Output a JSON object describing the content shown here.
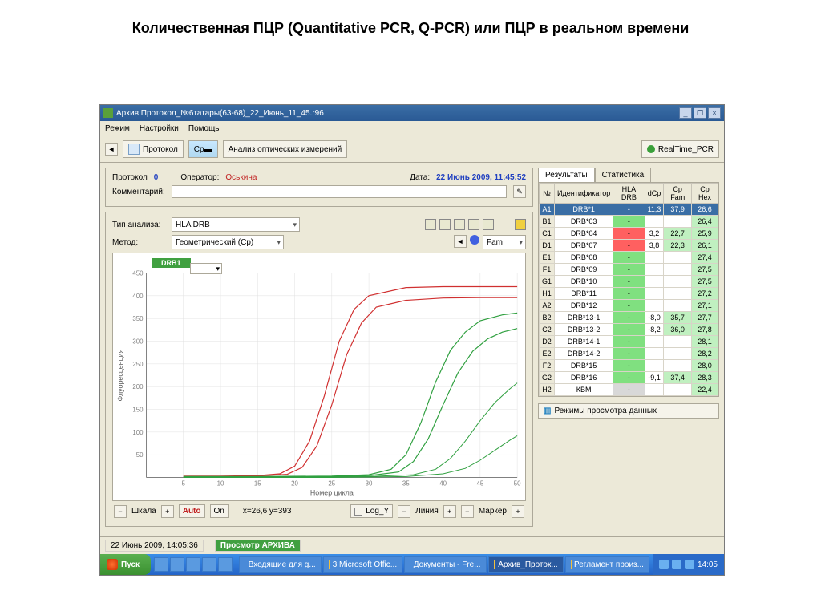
{
  "slide": {
    "title": "Количественная ПЦР (Quantitative PCR, Q-PCR) или ПЦР в реальном времени"
  },
  "window": {
    "title": "Архив Протокол_№6татары(63-68)_22_Июнь_11_45.r96",
    "menu": {
      "mode": "Режим",
      "settings": "Настройки",
      "help": "Помощь"
    },
    "toolbar": {
      "protocol_btn": "Протокол",
      "analysis_btn": "Анализ оптических измерений",
      "rt_btn": "RealTime_PCR"
    }
  },
  "info": {
    "protocol_lbl": "Протокол",
    "protocol_val": "0",
    "operator_lbl": "Оператор:",
    "operator_val": "Оськина",
    "date_lbl": "Дата:",
    "date_val": "22 Июнь 2009, 11:45:52",
    "comment_lbl": "Комментарий:",
    "type_lbl": "Тип анализа:",
    "type_val": "HLA DRB",
    "method_lbl": "Метод:",
    "method_val": "Геометрический (Cp)",
    "chan_lbl": "Fam"
  },
  "chart": {
    "legend": "DRB1",
    "xlabel": "Номер цикла",
    "ylabel": "Флуоресценция",
    "ylim": [
      0,
      450
    ],
    "yticks": [
      50,
      100,
      150,
      200,
      250,
      300,
      350,
      400,
      450
    ],
    "xlim": [
      0,
      50
    ],
    "xticks": [
      5,
      10,
      15,
      20,
      25,
      30,
      35,
      40,
      45,
      50
    ],
    "bg": "#ffffff",
    "grid": "#e0e0e0",
    "series": [
      {
        "color": "#d03030",
        "width": 1.2,
        "pts": [
          [
            5,
            3
          ],
          [
            10,
            3
          ],
          [
            15,
            4
          ],
          [
            18,
            8
          ],
          [
            20,
            25
          ],
          [
            22,
            80
          ],
          [
            24,
            180
          ],
          [
            26,
            300
          ],
          [
            28,
            370
          ],
          [
            30,
            400
          ],
          [
            35,
            418
          ],
          [
            40,
            420
          ],
          [
            45,
            420
          ],
          [
            50,
            420
          ]
        ]
      },
      {
        "color": "#d03030",
        "width": 1.2,
        "pts": [
          [
            5,
            2
          ],
          [
            10,
            2
          ],
          [
            15,
            3
          ],
          [
            19,
            7
          ],
          [
            21,
            22
          ],
          [
            23,
            70
          ],
          [
            25,
            160
          ],
          [
            27,
            270
          ],
          [
            29,
            340
          ],
          [
            31,
            375
          ],
          [
            35,
            390
          ],
          [
            40,
            395
          ],
          [
            45,
            396
          ],
          [
            50,
            396
          ]
        ]
      },
      {
        "color": "#30a040",
        "width": 1.2,
        "pts": [
          [
            5,
            2
          ],
          [
            15,
            2
          ],
          [
            25,
            3
          ],
          [
            30,
            6
          ],
          [
            33,
            18
          ],
          [
            35,
            50
          ],
          [
            37,
            120
          ],
          [
            39,
            210
          ],
          [
            41,
            280
          ],
          [
            43,
            320
          ],
          [
            45,
            345
          ],
          [
            48,
            358
          ],
          [
            50,
            362
          ]
        ]
      },
      {
        "color": "#30a040",
        "width": 1.2,
        "pts": [
          [
            5,
            1
          ],
          [
            15,
            1
          ],
          [
            25,
            2
          ],
          [
            30,
            4
          ],
          [
            34,
            12
          ],
          [
            36,
            35
          ],
          [
            38,
            85
          ],
          [
            40,
            160
          ],
          [
            42,
            230
          ],
          [
            44,
            278
          ],
          [
            46,
            305
          ],
          [
            48,
            320
          ],
          [
            50,
            328
          ]
        ]
      },
      {
        "color": "#30a040",
        "width": 1.0,
        "pts": [
          [
            5,
            1
          ],
          [
            20,
            1
          ],
          [
            30,
            2
          ],
          [
            36,
            6
          ],
          [
            39,
            18
          ],
          [
            41,
            42
          ],
          [
            43,
            80
          ],
          [
            45,
            125
          ],
          [
            47,
            165
          ],
          [
            49,
            195
          ],
          [
            50,
            208
          ]
        ]
      },
      {
        "color": "#30a040",
        "width": 1.0,
        "pts": [
          [
            5,
            0
          ],
          [
            25,
            0
          ],
          [
            35,
            2
          ],
          [
            40,
            8
          ],
          [
            43,
            20
          ],
          [
            45,
            38
          ],
          [
            47,
            60
          ],
          [
            49,
            82
          ],
          [
            50,
            92
          ]
        ]
      }
    ]
  },
  "controls": {
    "scale": "Шкала",
    "auto": "Auto",
    "on": "On",
    "cursor": "x=26,6 y=393",
    "logy": "Log_Y",
    "line": "Линия",
    "marker": "Маркер"
  },
  "results": {
    "tab1": "Результаты",
    "tab2": "Статистика",
    "headers": {
      "n": "№",
      "id": "Идентификатор",
      "hla": "HLA DRB",
      "dcp": "dCp",
      "cpfam": "Cp Fam",
      "cphex": "Cp Hex"
    },
    "rows": [
      {
        "w": "A1",
        "id": "DRB*1",
        "hla": "g",
        "dcp": "11,3",
        "cpfam": "37,9",
        "cphex": "26,6",
        "sel": true
      },
      {
        "w": "B1",
        "id": "DRB*03",
        "hla": "g",
        "dcp": "",
        "cpfam": "",
        "cphex": "26,4"
      },
      {
        "w": "C1",
        "id": "DRB*04",
        "hla": "r",
        "dcp": "3,2",
        "cpfam": "22,7",
        "cphex": "25,9"
      },
      {
        "w": "D1",
        "id": "DRB*07",
        "hla": "r",
        "dcp": "3,8",
        "cpfam": "22,3",
        "cphex": "26,1"
      },
      {
        "w": "E1",
        "id": "DRB*08",
        "hla": "g",
        "dcp": "",
        "cpfam": "",
        "cphex": "27,4"
      },
      {
        "w": "F1",
        "id": "DRB*09",
        "hla": "g",
        "dcp": "",
        "cpfam": "",
        "cphex": "27,5"
      },
      {
        "w": "G1",
        "id": "DRB*10",
        "hla": "g",
        "dcp": "",
        "cpfam": "",
        "cphex": "27,5"
      },
      {
        "w": "H1",
        "id": "DRB*11",
        "hla": "g",
        "dcp": "",
        "cpfam": "",
        "cphex": "27,2"
      },
      {
        "w": "A2",
        "id": "DRB*12",
        "hla": "g",
        "dcp": "",
        "cpfam": "",
        "cphex": "27,1"
      },
      {
        "w": "B2",
        "id": "DRB*13-1",
        "hla": "g",
        "dcp": "-8,0",
        "cpfam": "35,7",
        "cphex": "27,7"
      },
      {
        "w": "C2",
        "id": "DRB*13-2",
        "hla": "g",
        "dcp": "-8,2",
        "cpfam": "36,0",
        "cphex": "27,8"
      },
      {
        "w": "D2",
        "id": "DRB*14-1",
        "hla": "g",
        "dcp": "",
        "cpfam": "",
        "cphex": "28,1"
      },
      {
        "w": "E2",
        "id": "DRB*14-2",
        "hla": "g",
        "dcp": "",
        "cpfam": "",
        "cphex": "28,2"
      },
      {
        "w": "F2",
        "id": "DRB*15",
        "hla": "g",
        "dcp": "",
        "cpfam": "",
        "cphex": "28,0"
      },
      {
        "w": "G2",
        "id": "DRB*16",
        "hla": "g",
        "dcp": "-9,1",
        "cpfam": "37,4",
        "cphex": "28,3"
      },
      {
        "w": "H2",
        "id": "КВМ",
        "hla": "gy",
        "dcp": "",
        "cpfam": "",
        "cphex": "22,4"
      }
    ],
    "view_btn": "Режимы просмотра данных"
  },
  "status": {
    "time": "22 Июнь 2009, 14:05:36",
    "mode": "Просмотр АРХИВА"
  },
  "taskbar": {
    "start": "Пуск",
    "tasks": [
      "Входящие для g...",
      "3 Microsoft Offic...",
      "Документы - Fre...",
      "Архив_Проток...",
      "Регламент произ..."
    ],
    "active_task": 3,
    "clock": "14:05"
  }
}
